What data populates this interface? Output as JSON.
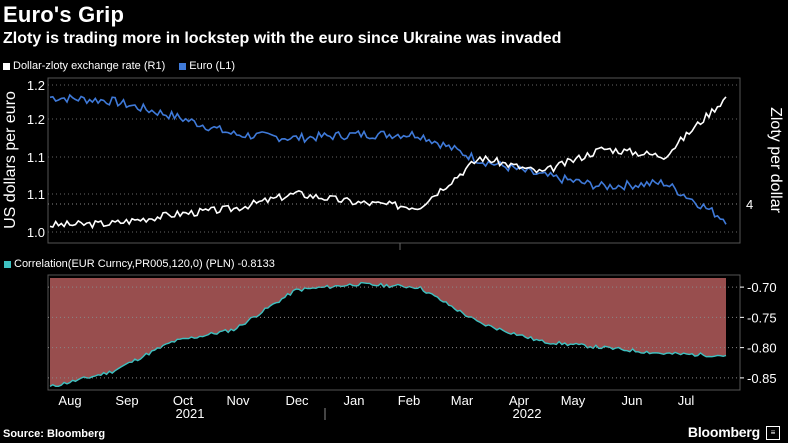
{
  "title": "Euro's Grip",
  "subtitle": "Zloty is trading more in lockstep with the euro since Ukraine was invaded",
  "legend": [
    {
      "label": "Dollar-zloty exchange rate (R1)",
      "color": "#ffffff"
    },
    {
      "label": "Euro  (L1)",
      "color": "#3f7ad9"
    }
  ],
  "correlation_label": "Correlation(EUR Curncy,PR005,120,0) (PLN) -0.8133",
  "source": "Source: Bloomberg",
  "brand": "Bloomberg",
  "chart_data": [
    {
      "type": "line",
      "title": "Euro's Grip",
      "ylabel": "US dollars per euro",
      "y2label": "Zloty per dollar",
      "ylim": [
        1.0,
        1.2
      ],
      "yticks": [
        "1.0",
        "1.1",
        "1.1",
        "1.2",
        "1.2"
      ],
      "y2ticks": [
        "4"
      ],
      "x": [
        "Aug",
        "Sep",
        "Oct",
        "Nov",
        "Dec",
        "Jan",
        "Feb",
        "Mar",
        "Apr",
        "May",
        "Jun",
        "Jul"
      ],
      "series": [
        {
          "name": "Euro  (L1)",
          "color": "#3f7ad9",
          "values": [
            1.185,
            1.18,
            1.16,
            1.135,
            1.13,
            1.135,
            1.135,
            1.1,
            1.08,
            1.065,
            1.07,
            1.02
          ]
        },
        {
          "name": "Dollar-zloty exchange rate (R1)",
          "color": "#ffffff",
          "values": [
            3.87,
            3.88,
            3.94,
            3.98,
            4.08,
            4.02,
            3.99,
            4.32,
            4.22,
            4.38,
            4.33,
            4.72
          ]
        }
      ],
      "y2lim": [
        3.75,
        4.85
      ],
      "grid": true
    },
    {
      "type": "area",
      "series": [
        {
          "name": "Correlation(EUR Curncy,PR005,120,0) (PLN)",
          "color": "#3ec1c1",
          "values": [
            -0.865,
            -0.84,
            -0.79,
            -0.77,
            -0.705,
            -0.695,
            -0.7,
            -0.76,
            -0.79,
            -0.8,
            -0.81,
            -0.813
          ]
        }
      ],
      "ylim": [
        -0.87,
        -0.68
      ],
      "yticks": [
        "-0.70",
        "-0.75",
        "-0.80",
        "-0.85"
      ],
      "x": [
        "Aug",
        "Sep",
        "Oct",
        "Nov",
        "Dec",
        "Jan",
        "Feb",
        "Mar",
        "Apr",
        "May",
        "Jun",
        "Jul"
      ],
      "years": [
        "2021",
        "2022"
      ]
    }
  ]
}
